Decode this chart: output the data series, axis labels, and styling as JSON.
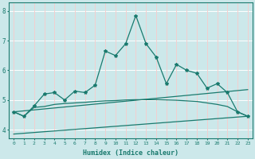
{
  "xlabel": "Humidex (Indice chaleur)",
  "ylabel": "",
  "xlim": [
    -0.5,
    23.5
  ],
  "ylim": [
    3.7,
    8.3
  ],
  "yticks": [
    4,
    5,
    6,
    7,
    8
  ],
  "xticks": [
    0,
    1,
    2,
    3,
    4,
    5,
    6,
    7,
    8,
    9,
    10,
    11,
    12,
    13,
    14,
    15,
    16,
    17,
    18,
    19,
    20,
    21,
    22,
    23
  ],
  "bg_color": "#cce8ea",
  "grid_color": "#ffffff",
  "line_color": "#1a7a6e",
  "line1_x": [
    0,
    1,
    2,
    3,
    4,
    5,
    6,
    7,
    8,
    9,
    10,
    11,
    12,
    13,
    14,
    15,
    16,
    17,
    18,
    19,
    20,
    21,
    22,
    23
  ],
  "line1_y": [
    4.6,
    4.45,
    4.8,
    5.2,
    5.25,
    5.0,
    5.3,
    5.25,
    5.5,
    6.65,
    6.5,
    6.9,
    7.85,
    6.9,
    6.45,
    5.55,
    6.2,
    6.0,
    5.9,
    5.4,
    5.55,
    5.25,
    4.6,
    4.45
  ],
  "line2_x": [
    0,
    1,
    2,
    3,
    4,
    5,
    6,
    7,
    8,
    9,
    10,
    11,
    12,
    13,
    14,
    15,
    16,
    17,
    18,
    19,
    20,
    21,
    22,
    23
  ],
  "line2_y": [
    4.6,
    4.45,
    4.75,
    4.78,
    4.85,
    4.88,
    4.9,
    4.92,
    4.95,
    4.97,
    4.98,
    5.0,
    5.01,
    5.01,
    5.01,
    5.0,
    4.99,
    4.97,
    4.95,
    4.9,
    4.85,
    4.78,
    4.6,
    4.45
  ],
  "line3_x": [
    0,
    23
  ],
  "line3_y": [
    4.6,
    5.35
  ],
  "line4_x": [
    0,
    23
  ],
  "line4_y": [
    3.85,
    4.45
  ]
}
